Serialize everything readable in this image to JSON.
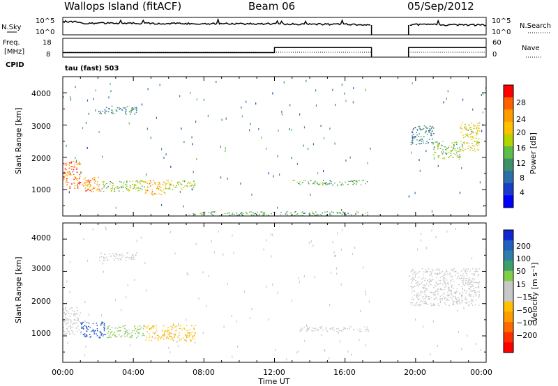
{
  "header": {
    "station": "Wallops Island (fitACF)",
    "beam": "Beam 06",
    "date": "05/Sep/2012"
  },
  "noise_panel": {
    "left_label": "N.Sky",
    "right_label": "N.Search",
    "left_ticks": [
      "10^5",
      "10^0"
    ],
    "right_ticks": [
      "10^5",
      "10^0"
    ]
  },
  "freq_panel": {
    "left_label_1": "Freq.",
    "left_label_2": "[MHz]",
    "right_label": "Nave",
    "left_ticks": [
      "18",
      "8"
    ],
    "right_ticks": [
      "60",
      "0"
    ]
  },
  "cpid_label": "CPID",
  "cpid_value": "tau (fast) 503",
  "power_panel": {
    "ylabel": "Slant Range [km]",
    "yticks": [
      "4000",
      "3000",
      "2000",
      "1000"
    ],
    "colorbar_label": "Power [dB]",
    "colorbar_ticks": [
      "28",
      "24",
      "20",
      "16",
      "12",
      "8",
      "4"
    ],
    "colorbar_colors": [
      "#ff0000",
      "#ff6000",
      "#ff9d00",
      "#ffc000",
      "#b5d300",
      "#5bbf4a",
      "#3f8f6a",
      "#2b6fa8",
      "#1a3cc8",
      "#0000ff"
    ]
  },
  "velocity_panel": {
    "ylabel": "Slant Range [km]",
    "yticks": [
      "4000",
      "3000",
      "2000",
      "1000"
    ],
    "colorbar_label": "Velocity [m s⁻¹]",
    "colorbar_ticks": [
      "200",
      "100",
      "50",
      "15",
      "−15",
      "−50",
      "−100",
      "−200"
    ],
    "colorbar_colors": [
      "#1028d0",
      "#2060c0",
      "#2e7fa8",
      "#3e9f6a",
      "#7fd048",
      "#c8c8c8",
      "#c8c8c8",
      "#ffc000",
      "#ff9d00",
      "#ff6a00",
      "#ff3000",
      "#ff0000"
    ]
  },
  "xaxis": {
    "label": "Time UT",
    "ticks": [
      "00:00",
      "04:00",
      "08:00",
      "12:00",
      "16:00",
      "20:00",
      "00:00"
    ]
  },
  "chart_data": {
    "type": "heatmap",
    "title": "Wallops Island (fitACF)",
    "xlabel": "Time UT",
    "ylabel": "Slant Range [km]",
    "xlim": [
      0,
      24
    ],
    "ylim": [
      180,
      4500
    ],
    "power_range_db": [
      0,
      30
    ],
    "velocity_range_ms": [
      -250,
      250
    ],
    "freq_step": {
      "hour": 12,
      "before_mhz": 10.5,
      "after_mhz": 14.5
    },
    "data_gap_hours": [
      17.5,
      19.6
    ],
    "power_regions": [
      {
        "t0": 0.0,
        "t1": 1.0,
        "r0": 1050,
        "r1": 1900,
        "power_db": 26
      },
      {
        "t0": 1.0,
        "t1": 2.2,
        "r0": 950,
        "r1": 1400,
        "power_db": 24
      },
      {
        "t0": 2.2,
        "t1": 4.6,
        "r0": 950,
        "r1": 1300,
        "power_db": 14
      },
      {
        "t0": 4.6,
        "t1": 5.8,
        "r0": 850,
        "r1": 1300,
        "power_db": 22
      },
      {
        "t0": 5.8,
        "t1": 7.5,
        "r0": 1000,
        "r1": 1300,
        "power_db": 16
      },
      {
        "t0": 2.0,
        "t1": 4.2,
        "r0": 3350,
        "r1": 3600,
        "power_db": 8
      },
      {
        "t0": 7.0,
        "t1": 17.3,
        "r0": 200,
        "r1": 330,
        "power_db": 12
      },
      {
        "t0": 13.0,
        "t1": 17.3,
        "r0": 1150,
        "r1": 1300,
        "power_db": 12
      },
      {
        "t0": 19.7,
        "t1": 21.0,
        "r0": 2400,
        "r1": 3000,
        "power_db": 8
      },
      {
        "t0": 21.0,
        "t1": 22.5,
        "r0": 1950,
        "r1": 2500,
        "power_db": 14
      },
      {
        "t0": 22.5,
        "t1": 23.6,
        "r0": 2200,
        "r1": 3100,
        "power_db": 18
      }
    ],
    "velocity_regions": [
      {
        "t0": 0.0,
        "t1": 1.0,
        "r0": 1050,
        "r1": 1900,
        "velocity": 10
      },
      {
        "t0": 1.0,
        "t1": 2.4,
        "r0": 950,
        "r1": 1450,
        "velocity": 210
      },
      {
        "t0": 2.4,
        "t1": 4.6,
        "r0": 950,
        "r1": 1350,
        "velocity": 60
      },
      {
        "t0": 4.6,
        "t1": 7.5,
        "r0": 850,
        "r1": 1350,
        "velocity": -70
      },
      {
        "t0": 2.0,
        "t1": 4.2,
        "r0": 3350,
        "r1": 3600,
        "velocity": 0
      },
      {
        "t0": 13.0,
        "t1": 17.3,
        "r0": 1150,
        "r1": 1300,
        "velocity": 0
      },
      {
        "t0": 19.7,
        "t1": 23.6,
        "r0": 1950,
        "r1": 3100,
        "velocity": 0
      }
    ]
  }
}
